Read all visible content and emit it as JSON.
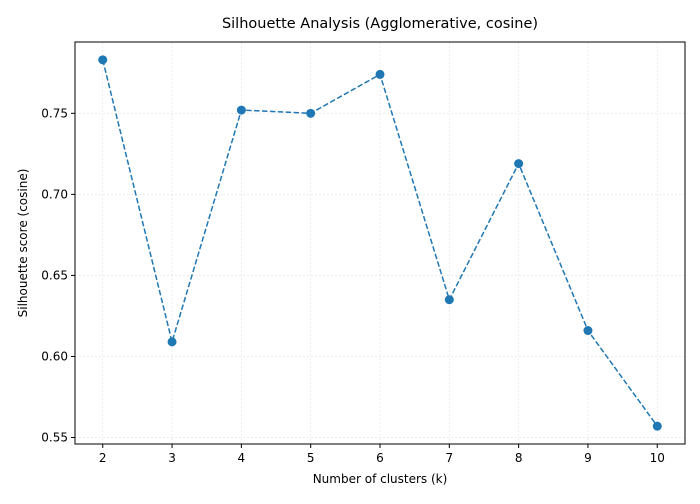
{
  "chart_data": {
    "type": "line",
    "title": "Silhouette Analysis (Agglomerative, cosine)",
    "xlabel": "Number of clusters (k)",
    "ylabel": "Silhouette score (cosine)",
    "x": [
      2,
      3,
      4,
      5,
      6,
      7,
      8,
      9,
      10
    ],
    "series": [
      {
        "values": [
          0.783,
          0.609,
          0.752,
          0.75,
          0.774,
          0.635,
          0.719,
          0.616,
          0.557
        ]
      }
    ],
    "xticks": [
      "2",
      "3",
      "4",
      "5",
      "6",
      "7",
      "8",
      "9",
      "10"
    ],
    "yticks": [
      "0.55",
      "0.60",
      "0.65",
      "0.70",
      "0.75"
    ],
    "xlim": [
      1.6,
      10.4
    ],
    "ylim": [
      0.546,
      0.794
    ],
    "grid": true,
    "line_style": "dashed",
    "marker": "circle",
    "colors": {
      "series": "#1f77b4",
      "grid": "#b0b0b0",
      "axis": "#000000"
    }
  }
}
